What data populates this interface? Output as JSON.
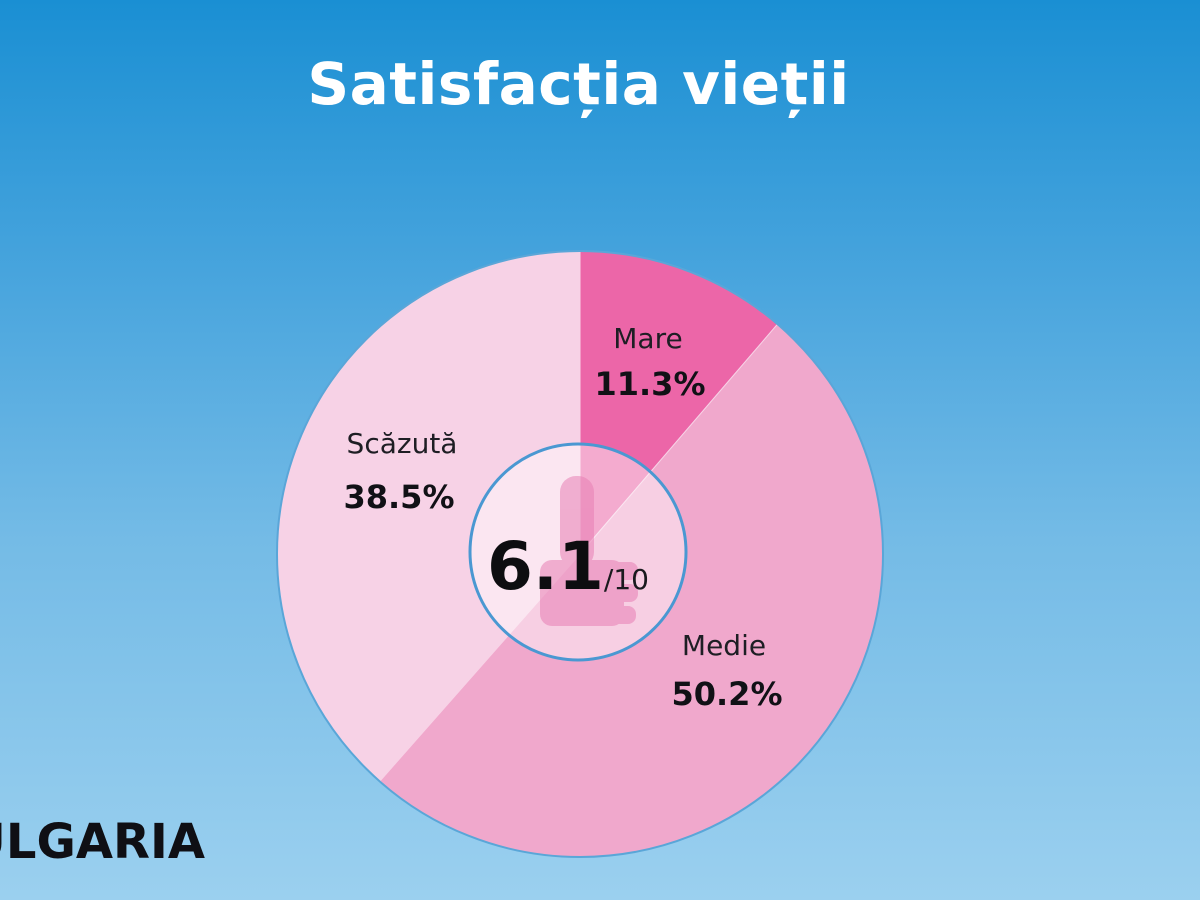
{
  "title": "Satisfacția vieții",
  "country_label": "BULGARIA",
  "center": {
    "score": "6.1",
    "scale": "/10"
  },
  "colors": {
    "mare": "#ec66a8",
    "medie": "#f0a8cc",
    "scazuta": "#f7d2e6",
    "center_ring": "#4a98d2",
    "background_top": "#1a8fd3",
    "background_bottom": "#9bd0ef"
  },
  "icon": "thumbs-up-icon",
  "chart_data": {
    "type": "pie",
    "title": "Satisfacția vieții",
    "unit": "%",
    "center_value": 6.1,
    "center_max": 10,
    "slices": [
      {
        "name": "Mare",
        "value": 11.3,
        "label": "11.3%",
        "color": "#ec66a8"
      },
      {
        "name": "Medie",
        "value": 50.2,
        "label": "50.2%",
        "color": "#f0a8cc"
      },
      {
        "name": "Scăzută",
        "value": 38.5,
        "label": "38.5%",
        "color": "#f7d2e6"
      }
    ]
  }
}
